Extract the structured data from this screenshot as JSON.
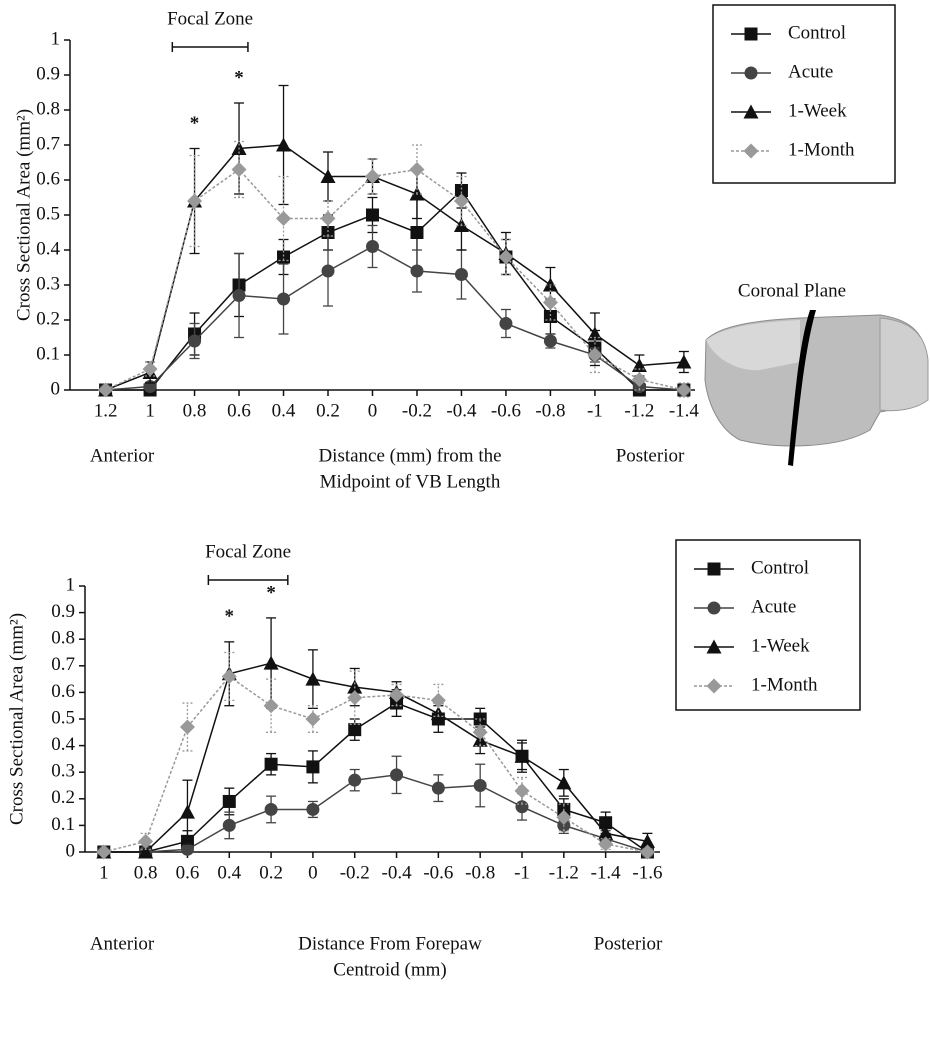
{
  "chart_data": [
    {
      "type": "line",
      "ylabel": "Cross Sectional Area (mm²)",
      "xlabel": [
        "Distance (mm) from the",
        "Midpoint of VB Length"
      ],
      "x_end_labels": [
        "Anterior",
        "Posterior"
      ],
      "inset_label": "Coronal Plane",
      "focal_zone": {
        "label": "Focal Zone",
        "range": [
          0.9,
          0.56
        ]
      },
      "annotations": [
        {
          "text": "*",
          "x": 0.8
        },
        {
          "text": "*",
          "x": 0.6
        }
      ],
      "x": [
        1.2,
        1,
        0.8,
        0.6,
        0.4,
        0.2,
        0,
        -0.2,
        -0.4,
        -0.6,
        -0.8,
        -1,
        -1.2,
        -1.4
      ],
      "xlim": [
        1.36,
        -1.45
      ],
      "xticks": [
        1.2,
        1,
        0.8,
        0.6,
        0.4,
        0.2,
        0,
        -0.2,
        -0.4,
        -0.6,
        -0.8,
        -1,
        -1.2,
        -1.4
      ],
      "ylim": [
        0,
        1
      ],
      "yticks": [
        0,
        0.1,
        0.2,
        0.3,
        0.4,
        0.5,
        0.6,
        0.7,
        0.8,
        0.9,
        1
      ],
      "legend": "upper right",
      "series": [
        {
          "name": "Control",
          "color": "#111111",
          "marker": "square",
          "line_style": "solid",
          "values": [
            0,
            0,
            0.16,
            0.3,
            0.38,
            0.45,
            0.5,
            0.45,
            0.57,
            0.38,
            0.21,
            0.12,
            0,
            0
          ],
          "errors": [
            0,
            0,
            0.06,
            0.09,
            0.05,
            0.05,
            0.05,
            0.1,
            0.05,
            0.05,
            0.05,
            0.05,
            0,
            0
          ]
        },
        {
          "name": "Acute",
          "color": "#444444",
          "marker": "circle",
          "line_style": "solid",
          "values": [
            0,
            0.01,
            0.14,
            0.27,
            0.26,
            0.34,
            0.41,
            0.34,
            0.33,
            0.19,
            0.14,
            0.1,
            0.01,
            0
          ],
          "errors": [
            0,
            0,
            0.05,
            0.12,
            0.1,
            0.1,
            0.06,
            0.06,
            0.07,
            0.04,
            0.02,
            0.02,
            0,
            0
          ]
        },
        {
          "name": "1-Week",
          "color": "#111111",
          "marker": "triangle",
          "line_style": "solid",
          "values": [
            0,
            0.05,
            0.54,
            0.69,
            0.7,
            0.61,
            0.61,
            0.56,
            0.47,
            0.39,
            0.3,
            0.16,
            0.07,
            0.08
          ],
          "errors": [
            0,
            0.03,
            0.15,
            0.13,
            0.17,
            0.07,
            0.05,
            0.07,
            0.07,
            0.06,
            0.05,
            0.06,
            0.03,
            0.03
          ]
        },
        {
          "name": "1-Month",
          "color": "#999999",
          "marker": "diamond",
          "line_style": "dashed",
          "values": [
            0,
            0.06,
            0.54,
            0.63,
            0.49,
            0.49,
            0.61,
            0.63,
            0.54,
            0.38,
            0.25,
            0.1,
            0.03,
            0
          ],
          "errors": [
            0,
            0.02,
            0.13,
            0.08,
            0.12,
            0.05,
            0.05,
            0.07,
            0.07,
            0.05,
            0.05,
            0.05,
            0.03,
            0.02
          ]
        }
      ]
    },
    {
      "type": "line",
      "ylabel": "Cross Sectional Area (mm²)",
      "xlabel": [
        "Distance From Forepaw",
        "Centroid (mm)"
      ],
      "x_end_labels": [
        "Anterior",
        "Posterior"
      ],
      "focal_zone": {
        "label": "Focal Zone",
        "range": [
          0.5,
          0.12
        ]
      },
      "annotations": [
        {
          "text": "*",
          "x": 0.4
        },
        {
          "text": "*",
          "x": 0.2
        }
      ],
      "x": [
        1,
        0.8,
        0.6,
        0.4,
        0.2,
        0,
        -0.2,
        -0.4,
        -0.6,
        -0.8,
        -1,
        -1.2,
        -1.4,
        -1.6
      ],
      "xlim": [
        1.09,
        -1.66
      ],
      "xticks": [
        1,
        0.8,
        0.6,
        0.4,
        0.2,
        0,
        -0.2,
        -0.4,
        -0.6,
        -0.8,
        -1,
        -1.2,
        -1.4,
        -1.6
      ],
      "ylim": [
        0,
        1
      ],
      "yticks": [
        0,
        0.1,
        0.2,
        0.3,
        0.4,
        0.5,
        0.6,
        0.7,
        0.8,
        0.9,
        1
      ],
      "legend": "upper right",
      "series": [
        {
          "name": "Control",
          "color": "#111111",
          "marker": "square",
          "line_style": "solid",
          "values": [
            0,
            0,
            0.04,
            0.19,
            0.33,
            0.32,
            0.46,
            0.56,
            0.5,
            0.5,
            0.36,
            0.16,
            0.11,
            0
          ],
          "errors": [
            0,
            0,
            0.04,
            0.05,
            0.04,
            0.06,
            0.04,
            0.05,
            0.05,
            0.04,
            0.05,
            0.04,
            0.04,
            0
          ]
        },
        {
          "name": "Acute",
          "color": "#444444",
          "marker": "circle",
          "line_style": "solid",
          "values": [
            0,
            0,
            0.01,
            0.1,
            0.16,
            0.16,
            0.27,
            0.29,
            0.24,
            0.25,
            0.17,
            0.1,
            0.05,
            0
          ],
          "errors": [
            0,
            0,
            0.01,
            0.05,
            0.05,
            0.03,
            0.04,
            0.07,
            0.05,
            0.08,
            0.05,
            0.03,
            0.03,
            0
          ]
        },
        {
          "name": "1-Week",
          "color": "#111111",
          "marker": "triangle",
          "line_style": "solid",
          "values": [
            0,
            0,
            0.15,
            0.67,
            0.71,
            0.65,
            0.62,
            0.6,
            0.52,
            0.42,
            0.36,
            0.26,
            0.07,
            0.04
          ],
          "errors": [
            0,
            0,
            0.12,
            0.12,
            0.17,
            0.11,
            0.07,
            0.04,
            0.04,
            0.05,
            0.06,
            0.05,
            0.03,
            0.03
          ]
        },
        {
          "name": "1-Month",
          "color": "#999999",
          "marker": "diamond",
          "line_style": "dashed",
          "values": [
            0,
            0.04,
            0.47,
            0.66,
            0.55,
            0.5,
            0.58,
            0.59,
            0.57,
            0.45,
            0.23,
            0.13,
            0.03,
            0
          ],
          "errors": [
            0,
            0.03,
            0.09,
            0.09,
            0.1,
            0.05,
            0.1,
            0.04,
            0.06,
            0.05,
            0.05,
            0.05,
            0.02,
            0.01
          ]
        }
      ]
    }
  ]
}
